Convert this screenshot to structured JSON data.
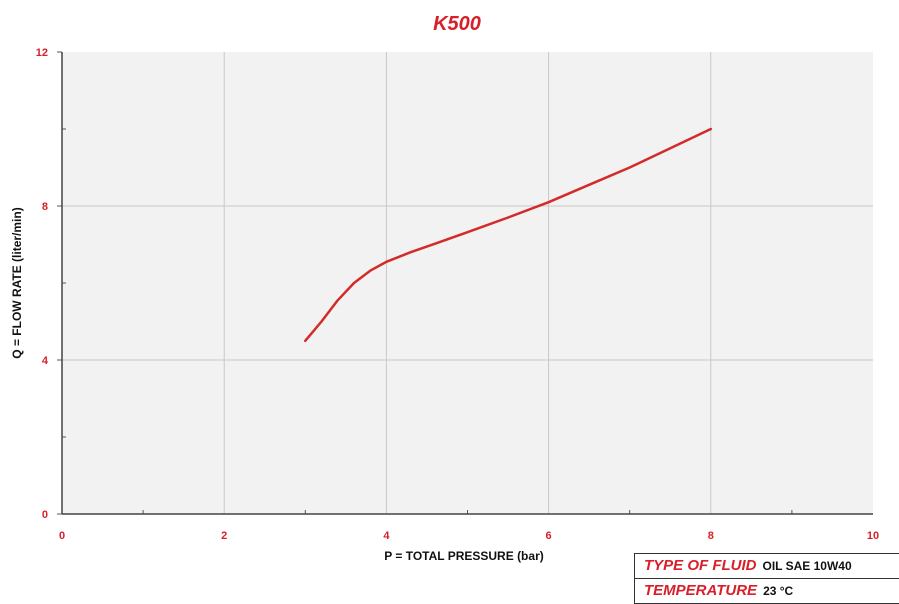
{
  "chart_data": {
    "type": "line",
    "title": "K500",
    "xlabel": "P = TOTAL PRESSURE (bar)",
    "ylabel": "Q = FLOW RATE (liter/min)",
    "xlim": [
      0,
      10
    ],
    "ylim": [
      0,
      12
    ],
    "xticks": [
      "0",
      "2",
      "4",
      "6",
      "8",
      "10"
    ],
    "yticks": [
      "0",
      "4",
      "8",
      "12"
    ],
    "grid": true,
    "series": [
      {
        "x": [
          3.0,
          3.2,
          3.4,
          3.6,
          3.8,
          4.0,
          4.3,
          4.6,
          5.0,
          5.5,
          6.0,
          6.5,
          7.0,
          7.5,
          8.0
        ],
        "y": [
          4.5,
          5.0,
          5.55,
          6.0,
          6.32,
          6.55,
          6.8,
          7.02,
          7.32,
          7.7,
          8.1,
          8.55,
          9.0,
          9.5,
          10.0
        ]
      }
    ],
    "colors": {
      "series": "#d32a2a",
      "accent": "#d81f2a",
      "plot_bg": "#f2f2f2",
      "grid": "#c8c8c8"
    }
  },
  "info": {
    "fluid_label": "TYPE OF FLUID",
    "fluid_value": "OIL SAE 10W40",
    "temp_label": "TEMPERATURE",
    "temp_value": "23 °C"
  }
}
